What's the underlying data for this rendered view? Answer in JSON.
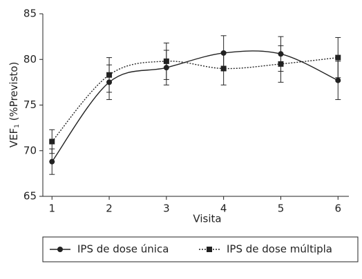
{
  "chart_data": {
    "type": "line",
    "ylabel_parts": [
      "VEF",
      "1",
      " (%Previsto)"
    ],
    "xlabel": "Visita",
    "x": [
      1,
      2,
      3,
      4,
      5,
      6
    ],
    "xlim": [
      0.84,
      6.19
    ],
    "xticks": [
      1,
      2,
      3,
      4,
      5,
      6
    ],
    "ylim": [
      65,
      85
    ],
    "yticks": [
      65,
      70,
      75,
      80,
      85
    ],
    "legend": "bottom",
    "series": [
      {
        "name": "IPS de dose única",
        "color": "#222222",
        "marker": "circle",
        "dash": "solid",
        "values": [
          68.8,
          77.5,
          79.1,
          80.7,
          80.6,
          77.7
        ],
        "errors": [
          1.4,
          1.9,
          1.9,
          1.9,
          1.9,
          2.1
        ]
      },
      {
        "name": "IPS de dose múltipla",
        "color": "#222222",
        "marker": "square",
        "dash": "dotted",
        "values": [
          71.0,
          78.3,
          79.8,
          79.0,
          79.5,
          80.2
        ],
        "errors": [
          1.3,
          1.9,
          2.0,
          1.8,
          2.0,
          2.2
        ]
      }
    ]
  }
}
